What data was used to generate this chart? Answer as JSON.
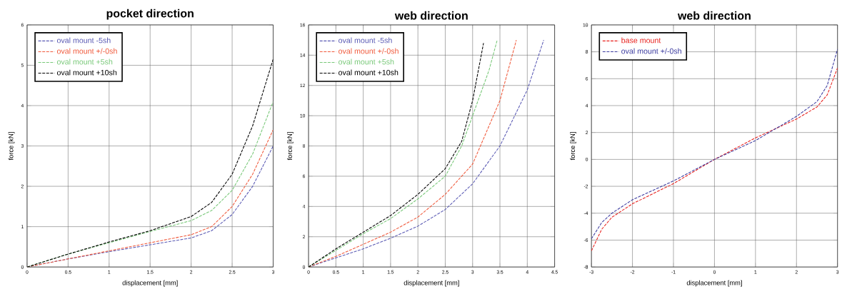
{
  "chart_data": [
    {
      "type": "line",
      "title": "pocket direction",
      "xlabel": "displacement [mm]",
      "ylabel": "force [kN]",
      "xlim": [
        0,
        3
      ],
      "ylim": [
        0,
        6
      ],
      "xticks": [
        0,
        0.5,
        1,
        1.5,
        2,
        2.5,
        3
      ],
      "yticks": [
        0,
        1,
        2,
        3,
        4,
        5,
        6
      ],
      "grid": true,
      "legend": "top left",
      "line_style": "dashed",
      "series": [
        {
          "name": "oval mount -5sh",
          "color": "#5a5ab4",
          "x": [
            0,
            0.5,
            1,
            1.5,
            2,
            2.25,
            2.5,
            2.75,
            3
          ],
          "values": [
            0,
            0.2,
            0.38,
            0.55,
            0.72,
            0.9,
            1.3,
            2.0,
            3.0
          ]
        },
        {
          "name": "oval mount +/-0sh",
          "color": "#f05a3c",
          "x": [
            0,
            0.5,
            1,
            1.5,
            2,
            2.25,
            2.5,
            2.75,
            3
          ],
          "values": [
            0,
            0.2,
            0.4,
            0.6,
            0.8,
            1.0,
            1.5,
            2.3,
            3.4
          ]
        },
        {
          "name": "oval mount +5sh",
          "color": "#78c878",
          "x": [
            0,
            0.5,
            1,
            1.5,
            2,
            2.25,
            2.5,
            2.75,
            3
          ],
          "values": [
            0,
            0.32,
            0.6,
            0.88,
            1.15,
            1.4,
            1.9,
            2.8,
            4.1
          ]
        },
        {
          "name": "oval mount +10sh",
          "color": "#000000",
          "x": [
            0,
            0.5,
            1,
            1.5,
            2,
            2.25,
            2.5,
            2.75,
            3
          ],
          "values": [
            0,
            0.32,
            0.62,
            0.9,
            1.25,
            1.6,
            2.3,
            3.5,
            5.15
          ]
        }
      ]
    },
    {
      "type": "line",
      "title": "web direction",
      "xlabel": "displacement [mm]",
      "ylabel": "force [kN]",
      "xlim": [
        0,
        4.5
      ],
      "ylim": [
        0,
        16
      ],
      "xticks": [
        0,
        0.5,
        1,
        1.5,
        2,
        2.5,
        3,
        3.5,
        4,
        4.5
      ],
      "yticks": [
        0,
        2,
        4,
        6,
        8,
        10,
        12,
        14,
        16
      ],
      "grid": true,
      "legend": "top left",
      "line_style": "dashed",
      "series": [
        {
          "name": "oval mount -5sh",
          "color": "#5a5ab4",
          "x": [
            0,
            0.5,
            1,
            1.5,
            2,
            2.5,
            3,
            3.5,
            4,
            4.3
          ],
          "values": [
            0,
            0.6,
            1.2,
            1.9,
            2.7,
            3.8,
            5.5,
            8,
            11.7,
            15
          ]
        },
        {
          "name": "oval mount +/-0sh",
          "color": "#f05a3c",
          "x": [
            0,
            0.5,
            1,
            1.5,
            2,
            2.5,
            3,
            3.5,
            3.8
          ],
          "values": [
            0,
            0.7,
            1.5,
            2.3,
            3.3,
            4.8,
            6.8,
            11,
            15
          ]
        },
        {
          "name": "oval mount +5sh",
          "color": "#78c878",
          "x": [
            0,
            0.5,
            1,
            1.5,
            2,
            2.5,
            2.8,
            3,
            3.3,
            3.45
          ],
          "values": [
            0,
            1.1,
            2.2,
            3.2,
            4.5,
            6,
            8,
            10,
            13,
            15
          ]
        },
        {
          "name": "oval mount +10sh",
          "color": "#000000",
          "x": [
            0,
            0.5,
            1,
            1.5,
            2,
            2.5,
            2.8,
            3,
            3.2
          ],
          "values": [
            0,
            1.2,
            2.3,
            3.4,
            4.8,
            6.5,
            8.3,
            11,
            14.8
          ]
        }
      ]
    },
    {
      "type": "line",
      "title": "web direction",
      "xlabel": "displacement [mm]",
      "ylabel": "force [kN]",
      "xlim": [
        -3,
        3
      ],
      "ylim": [
        -8,
        10
      ],
      "xticks": [
        -3,
        -2,
        -1,
        0,
        1,
        2,
        3
      ],
      "yticks": [
        -8,
        -6,
        -4,
        -2,
        0,
        2,
        4,
        6,
        8,
        10
      ],
      "grid": true,
      "legend": "top left",
      "line_style": "dashed",
      "series": [
        {
          "name": "base mount",
          "color": "#e8221e",
          "x": [
            -3,
            -2.75,
            -2.5,
            -2,
            -1,
            0,
            1,
            2,
            2.5,
            2.75,
            3
          ],
          "values": [
            -6.8,
            -5.2,
            -4.3,
            -3.3,
            -1.8,
            0,
            1.6,
            3.0,
            3.9,
            4.8,
            6.8
          ]
        },
        {
          "name": "oval mount +/-0sh",
          "color": "#3c3ca0",
          "x": [
            -3,
            -2.75,
            -2.5,
            -2,
            -1,
            0,
            1,
            2,
            2.5,
            2.75,
            3
          ],
          "values": [
            -5.9,
            -4.7,
            -4.0,
            -3.0,
            -1.6,
            0,
            1.4,
            3.2,
            4.3,
            5.5,
            8.2
          ]
        }
      ]
    }
  ]
}
